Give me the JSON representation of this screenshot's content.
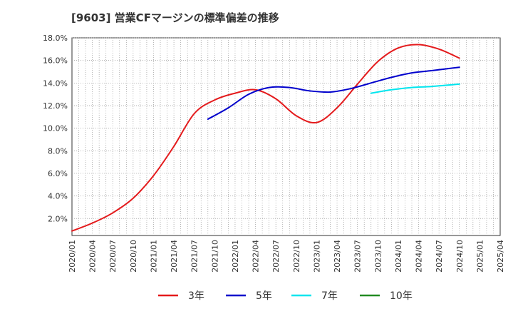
{
  "chart_data": {
    "type": "line",
    "title": "[9603]  営業CFマージンの標準偏差の推移",
    "xlabel": "",
    "ylabel": "",
    "ylim": [
      0.5,
      18.0
    ],
    "yticks": [
      "2.0%",
      "4.0%",
      "6.0%",
      "8.0%",
      "10.0%",
      "12.0%",
      "14.0%",
      "16.0%",
      "18.0%"
    ],
    "ytick_values": [
      2,
      4,
      6,
      8,
      10,
      12,
      14,
      16,
      18
    ],
    "xticks": [
      "2020/01",
      "2020/04",
      "2020/07",
      "2020/10",
      "2021/01",
      "2021/04",
      "2021/07",
      "2021/10",
      "2022/01",
      "2022/04",
      "2022/07",
      "2022/10",
      "2023/01",
      "2023/04",
      "2023/07",
      "2023/10",
      "2024/01",
      "2024/04",
      "2024/07",
      "2024/10",
      "2025/01",
      "2025/04"
    ],
    "grid": true,
    "legend_position": "bottom",
    "series": [
      {
        "name": "3年",
        "color": "#e41a1c",
        "points": [
          [
            "2020/01",
            0.9
          ],
          [
            "2020/04",
            1.6
          ],
          [
            "2020/07",
            2.5
          ],
          [
            "2020/10",
            3.8
          ],
          [
            "2021/01",
            5.8
          ],
          [
            "2021/04",
            8.4
          ],
          [
            "2021/07",
            11.3
          ],
          [
            "2021/10",
            12.5
          ],
          [
            "2022/01",
            13.1
          ],
          [
            "2022/04",
            13.4
          ],
          [
            "2022/07",
            12.6
          ],
          [
            "2022/10",
            11.1
          ],
          [
            "2023/01",
            10.5
          ],
          [
            "2023/04",
            11.8
          ],
          [
            "2023/07",
            13.9
          ],
          [
            "2023/10",
            15.9
          ],
          [
            "2024/01",
            17.1
          ],
          [
            "2024/04",
            17.4
          ],
          [
            "2024/07",
            17.0
          ],
          [
            "2024/10",
            16.2
          ]
        ]
      },
      {
        "name": "5年",
        "color": "#0000cc",
        "points": [
          [
            "2021/09",
            10.8
          ],
          [
            "2021/12",
            11.8
          ],
          [
            "2022/03",
            13.0
          ],
          [
            "2022/06",
            13.6
          ],
          [
            "2022/09",
            13.6
          ],
          [
            "2022/12",
            13.3
          ],
          [
            "2023/03",
            13.2
          ],
          [
            "2023/06",
            13.5
          ],
          [
            "2023/09",
            14.0
          ],
          [
            "2023/12",
            14.5
          ],
          [
            "2024/03",
            14.9
          ],
          [
            "2024/06",
            15.1
          ],
          [
            "2024/10",
            15.4
          ]
        ]
      },
      {
        "name": "7年",
        "color": "#00e5ee",
        "points": [
          [
            "2023/09",
            13.1
          ],
          [
            "2023/12",
            13.4
          ],
          [
            "2024/03",
            13.6
          ],
          [
            "2024/06",
            13.7
          ],
          [
            "2024/10",
            13.9
          ]
        ]
      },
      {
        "name": "10年",
        "color": "#228b22",
        "points": []
      }
    ]
  }
}
